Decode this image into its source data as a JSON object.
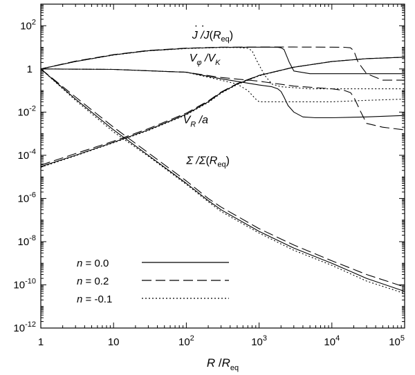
{
  "chart_data": {
    "type": "line",
    "xscale": "log",
    "yscale": "log",
    "xlim": [
      1,
      100000
    ],
    "ylim": [
      1e-12,
      1000
    ],
    "xlabel": {
      "var": "R",
      "sep": " /",
      "ref": "R",
      "sub": "eq"
    },
    "x_ticks": [
      {
        "value": 1,
        "label": "1"
      },
      {
        "value": 10,
        "label": "10"
      },
      {
        "value": 100,
        "base": "10",
        "exp": "2"
      },
      {
        "value": 1000,
        "base": "10",
        "exp": "3"
      },
      {
        "value": 10000,
        "base": "10",
        "exp": "4"
      },
      {
        "value": 100000,
        "base": "10",
        "exp": "5"
      }
    ],
    "y_ticks": [
      {
        "value": 100,
        "base": "10",
        "exp": "2"
      },
      {
        "value": 1,
        "label": "1"
      },
      {
        "value": 0.01,
        "base": "10",
        "exp": "-2"
      },
      {
        "value": 0.0001,
        "base": "10",
        "exp": "-4"
      },
      {
        "value": 1e-06,
        "base": "10",
        "exp": "-6"
      },
      {
        "value": 1e-08,
        "base": "10",
        "exp": "-8"
      },
      {
        "value": 1e-10,
        "base": "10",
        "exp": "-10"
      },
      {
        "value": 1e-12,
        "base": "10",
        "exp": "-12"
      }
    ],
    "quantities": [
      {
        "id": "jdot",
        "name": "J / J(R_eq)",
        "parts": {
          "a": "J",
          "sep": " /",
          "b": "J",
          "open": "(",
          "r": "R",
          "sub": "eq",
          "close": ")"
        },
        "label_at": [
          120,
          25
        ]
      },
      {
        "id": "vphi",
        "name": "V_phi / V_K",
        "parts": {
          "v": "V",
          "sub1": "φ",
          "sep": " /",
          "v2": "V",
          "sub2": "K"
        },
        "label_at": [
          110,
          2.2
        ]
      },
      {
        "id": "vr",
        "name": "V_R / a",
        "parts": {
          "v": "V",
          "sub": "R",
          "sep": " /",
          "a": "a"
        },
        "label_at": [
          90,
          0.003
        ]
      },
      {
        "id": "sigma",
        "name": "Sigma / Sigma(R_eq)",
        "parts": {
          "s": "Σ",
          "sep": " /",
          "s2": "Σ",
          "open": "(",
          "r": "R",
          "sub": "eq",
          "close": ")"
        },
        "label_at": [
          100,
          4e-05
        ]
      }
    ],
    "series": [
      {
        "name": "n = 0.0",
        "var": "n",
        "eq": " = ",
        "val": "0.0",
        "style": "solid",
        "curves": {
          "jdot": {
            "x": [
              1,
              3,
              10,
              30,
              100,
              300,
              1000,
              1500,
              1800,
              2000,
              2200,
              2600,
              3000,
              5000,
              10000,
              100000
            ],
            "y": [
              1,
              2.2,
              4.5,
              7,
              9,
              10,
              10.2,
              10.2,
              10,
              9.5,
              8,
              2,
              0.8,
              0.6,
              0.6,
              0.6
            ]
          },
          "vphi": {
            "x": [
              1,
              10,
              100,
              300,
              1000,
              1500,
              1800,
              2000,
              2200,
              2500,
              3000,
              4000,
              6000,
              10000,
              30000,
              100000
            ],
            "y": [
              1,
              0.95,
              0.7,
              0.35,
              0.18,
              0.15,
              0.12,
              0.09,
              0.05,
              0.02,
              0.01,
              0.006,
              0.0055,
              0.0055,
              0.006,
              0.007
            ]
          },
          "vr": {
            "x": [
              1,
              3,
              10,
              30,
              100,
              200,
              300,
              500,
              1000,
              3000,
              10000,
              30000,
              100000
            ],
            "y": [
              3e-05,
              0.0001,
              0.0004,
              0.0015,
              0.008,
              0.03,
              0.08,
              0.2,
              0.5,
              1.2,
              2.2,
              3,
              3.5
            ]
          },
          "sigma": {
            "x": [
              1,
              3,
              10,
              30,
              100,
              200,
              300,
              1000,
              3000,
              10000,
              30000,
              100000
            ],
            "y": [
              1,
              0.04,
              0.0015,
              0.0001,
              5e-06,
              8e-07,
              3e-07,
              3e-08,
              5e-09,
              1e-09,
              2e-10,
              5e-11
            ]
          }
        }
      },
      {
        "name": "n = 0.2",
        "var": "n",
        "eq": " = ",
        "val": "0.2",
        "style": "dashed",
        "curves": {
          "jdot": {
            "x": [
              1,
              3,
              10,
              30,
              100,
              300,
              1000,
              3000,
              10000,
              15000,
              18000,
              20000,
              23000,
              30000,
              50000,
              100000
            ],
            "y": [
              1,
              2.3,
              4.6,
              7.2,
              9.2,
              10.2,
              10.3,
              10.3,
              10.2,
              10,
              9.5,
              7,
              2,
              0.6,
              0.3,
              0.3
            ]
          },
          "vphi": {
            "x": [
              1,
              10,
              100,
              300,
              1000,
              3000,
              10000,
              15000,
              18000,
              20000,
              25000,
              30000,
              50000,
              100000
            ],
            "y": [
              1,
              0.95,
              0.7,
              0.4,
              0.27,
              0.16,
              0.12,
              0.1,
              0.08,
              0.05,
              0.01,
              0.003,
              0.002,
              0.0015
            ]
          },
          "vr": {
            "x": [
              1,
              3,
              10,
              30,
              100,
              200,
              300,
              500,
              1000,
              3000,
              10000,
              30000,
              100000
            ],
            "y": [
              3.5e-05,
              0.00012,
              0.00045,
              0.0017,
              0.009,
              0.033,
              0.085,
              0.21,
              0.5,
              1.2,
              2.2,
              3,
              3.5
            ]
          },
          "sigma": {
            "x": [
              1,
              3,
              10,
              30,
              100,
              200,
              300,
              1000,
              3000,
              10000,
              30000,
              100000
            ],
            "y": [
              1,
              0.05,
              0.002,
              0.00013,
              6.5e-06,
              1e-06,
              4e-07,
              4e-08,
              7e-09,
              1.3e-09,
              3e-10,
              8e-11
            ]
          }
        }
      },
      {
        "name": "n = -0.1",
        "var": "n",
        "eq": " = ",
        "val": "-0.1",
        "style": "dotted",
        "curves": {
          "jdot": {
            "x": [
              1,
              3,
              10,
              30,
              100,
              300,
              500,
              700,
              800,
              900,
              1000,
              1200,
              1500,
              2000,
              5000,
              100000
            ],
            "y": [
              1,
              2.2,
              4.4,
              6.9,
              8.8,
              9.8,
              9.8,
              9,
              7,
              3,
              1.5,
              0.5,
              0.2,
              0.15,
              0.12,
              0.12
            ]
          },
          "vphi": {
            "x": [
              1,
              10,
              100,
              300,
              500,
              700,
              900,
              1000,
              1500,
              2000,
              5000,
              10000,
              30000,
              100000
            ],
            "y": [
              1,
              0.95,
              0.7,
              0.3,
              0.2,
              0.1,
              0.04,
              0.03,
              0.03,
              0.03,
              0.03,
              0.03,
              0.035,
              0.04
            ]
          },
          "vr": {
            "x": [
              1,
              3,
              10,
              30,
              100,
              200,
              300,
              500,
              1000,
              3000,
              10000,
              30000,
              100000
            ],
            "y": [
              2.8e-05,
              9.5e-05,
              0.00038,
              0.0014,
              0.0075,
              0.028,
              0.075,
              0.19,
              0.48,
              1.2,
              2.2,
              3,
              3.5
            ]
          },
          "sigma": {
            "x": [
              1,
              3,
              10,
              30,
              100,
              200,
              300,
              1000,
              3000,
              10000,
              30000,
              100000
            ],
            "y": [
              1,
              0.035,
              0.0012,
              9e-05,
              4.5e-06,
              7e-07,
              2.5e-07,
              2.5e-08,
              4e-09,
              8e-10,
              1.5e-10,
              4e-11
            ]
          }
        }
      }
    ]
  }
}
